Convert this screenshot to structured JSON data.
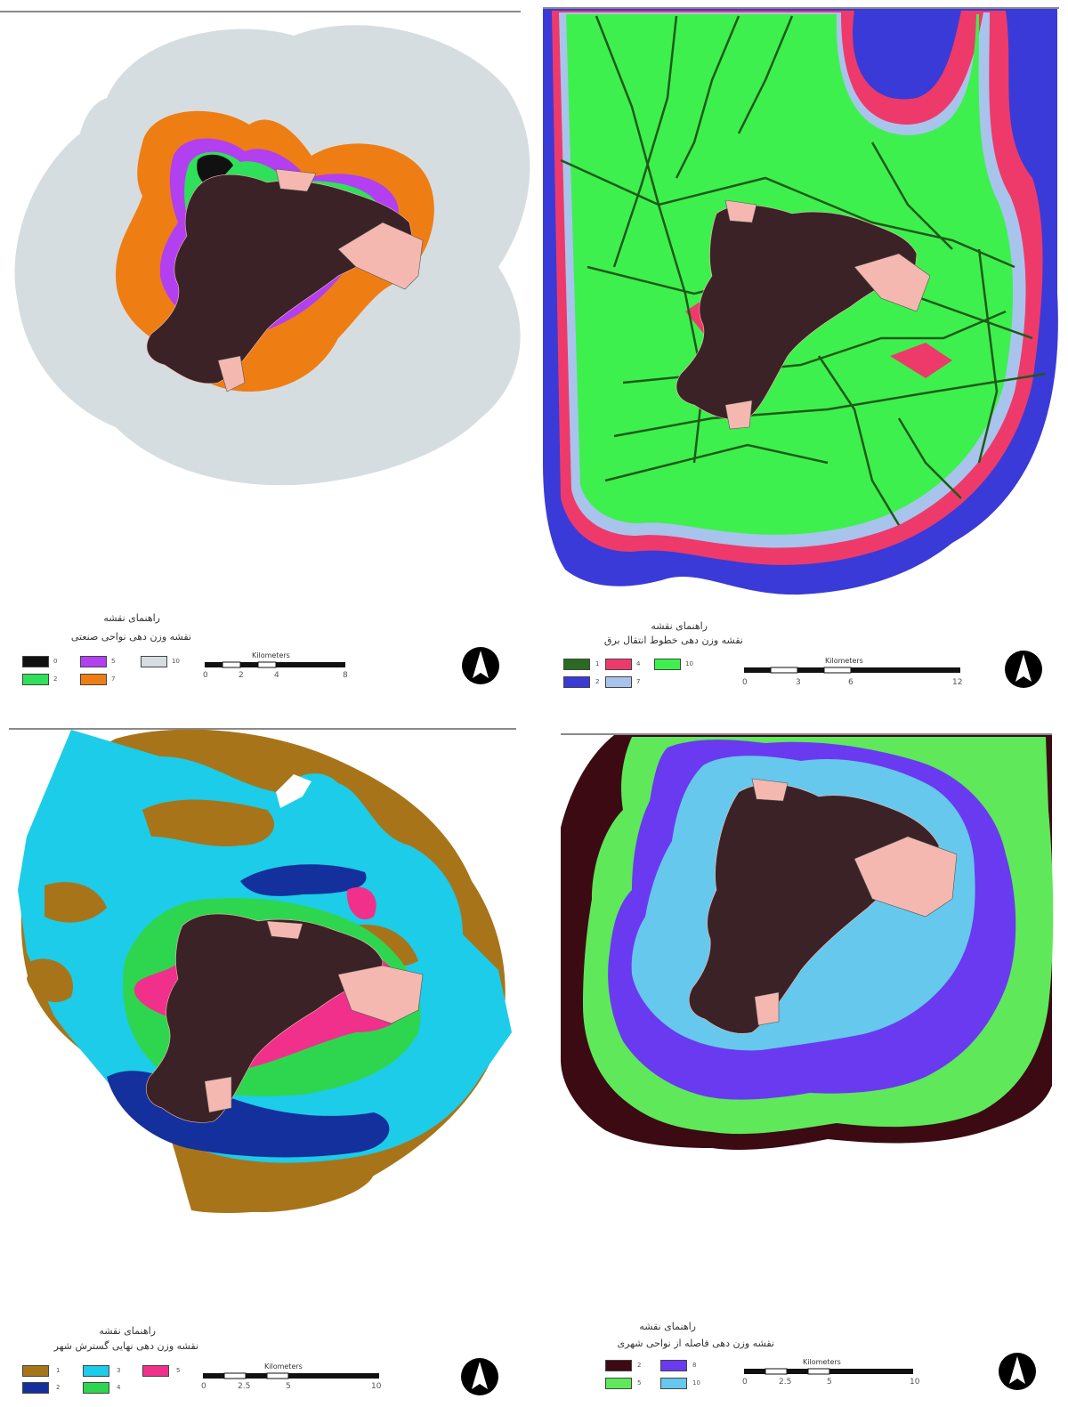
{
  "panels": [
    {
      "id": "industrial",
      "legend_heading": "راهنمای نقشه",
      "legend_title": "نقشه وزن دهی نواحی صنعتی",
      "classes": [
        {
          "label": "0",
          "color": "#111111"
        },
        {
          "label": "2",
          "color": "#2ee05a"
        },
        {
          "label": "5",
          "color": "#b23ff0"
        },
        {
          "label": "7",
          "color": "#ee7e14"
        },
        {
          "label": "10",
          "color": "#d6dde0"
        }
      ],
      "scale": {
        "unit": "Kilometers",
        "ticks": [
          "0",
          "2",
          "4",
          "8"
        ]
      }
    },
    {
      "id": "powerlines",
      "legend_heading": "راهنمای نقشه",
      "legend_title": "نقشه وزن دهی خطوط انتقال برق",
      "classes": [
        {
          "label": "1",
          "color": "#2a6a22"
        },
        {
          "label": "2",
          "color": "#3a3ad8"
        },
        {
          "label": "4",
          "color": "#ee3a6a"
        },
        {
          "label": "7",
          "color": "#a8c4ec"
        },
        {
          "label": "10",
          "color": "#3ef04e"
        }
      ],
      "scale": {
        "unit": "Kilometers",
        "ticks": [
          "0",
          "3",
          "6",
          "12"
        ]
      }
    },
    {
      "id": "expansion",
      "legend_heading": "راهنمای نقشه",
      "legend_title": "نقشه وزن دهی نهایی گسترش شهر",
      "classes": [
        {
          "label": "1",
          "color": "#a8741a"
        },
        {
          "label": "2",
          "color": "#14309c"
        },
        {
          "label": "3",
          "color": "#1ccce8"
        },
        {
          "label": "4",
          "color": "#2ed650"
        },
        {
          "label": "5",
          "color": "#f0308a"
        }
      ],
      "scale": {
        "unit": "Kilometers",
        "ticks": [
          "0",
          "2.5",
          "5",
          "10"
        ]
      }
    },
    {
      "id": "urban_distance",
      "legend_heading": "راهنمای نقشه",
      "legend_title": "نقشه وزن دهی فاصله از نواحی شهری",
      "classes": [
        {
          "label": "2",
          "color": "#3c0a12"
        },
        {
          "label": "5",
          "color": "#5ee85a"
        },
        {
          "label": "8",
          "color": "#6a3af0"
        },
        {
          "label": "10",
          "color": "#66c8ec"
        }
      ],
      "scale": {
        "unit": "Kilometers",
        "ticks": [
          "0",
          "2.5",
          "5",
          "10"
        ]
      }
    }
  ],
  "colors": {
    "city": "#3a2226",
    "city_parcels": "#f4b8b0",
    "outline": "#8a8a8a"
  }
}
